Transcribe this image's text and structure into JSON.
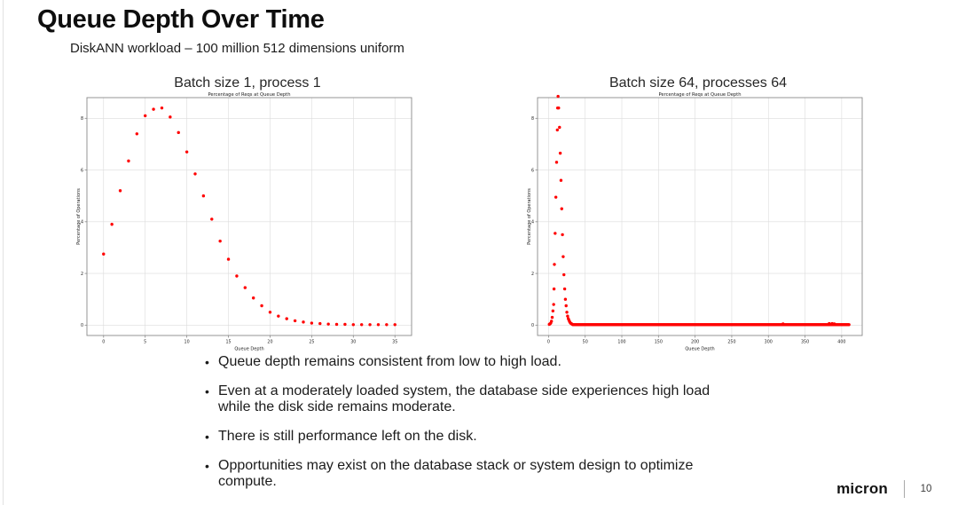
{
  "slide": {
    "title": "Queue Depth Over Time",
    "subtitle": "DiskANN workload – 100 million 512 dimensions uniform",
    "bullets": [
      "Queue depth remains consistent from low to high load.",
      "Even at a moderately loaded system, the database side experiences high load while the disk side remains moderate.",
      "There is still performance left on the disk.",
      "Opportunities may exist on the database stack or system design to optimize compute."
    ],
    "footer": {
      "logo_text": "micron",
      "page_number": "10"
    }
  },
  "chart_data": [
    {
      "type": "scatter",
      "title": "Batch size 1, process 1",
      "inner_title": "Percentage of Reqs at Queue Depth",
      "xlabel": "Queue Depth",
      "ylabel": "Percentage of Operations",
      "xlim": [
        -2,
        37
      ],
      "ylim": [
        -0.4,
        8.8
      ],
      "xticks": [
        0,
        5,
        10,
        15,
        20,
        25,
        30,
        35
      ],
      "yticks": [
        0,
        2,
        4,
        6,
        8
      ],
      "grid": true,
      "legend": "none",
      "marker_color": "#ff0000",
      "grid_color": "#dcdcdc",
      "spine_color": "#8a8a8a",
      "points": [
        [
          0,
          2.75
        ],
        [
          1,
          3.9
        ],
        [
          2,
          5.2
        ],
        [
          3,
          6.35
        ],
        [
          4,
          7.4
        ],
        [
          5,
          8.1
        ],
        [
          6,
          8.35
        ],
        [
          7,
          8.4
        ],
        [
          8,
          8.05
        ],
        [
          9,
          7.45
        ],
        [
          10,
          6.7
        ],
        [
          11,
          5.85
        ],
        [
          12,
          5.0
        ],
        [
          13,
          4.1
        ],
        [
          14,
          3.25
        ],
        [
          15,
          2.55
        ],
        [
          16,
          1.9
        ],
        [
          17,
          1.45
        ],
        [
          18,
          1.05
        ],
        [
          19,
          0.75
        ],
        [
          20,
          0.5
        ],
        [
          21,
          0.35
        ],
        [
          22,
          0.25
        ],
        [
          23,
          0.17
        ],
        [
          24,
          0.12
        ],
        [
          25,
          0.08
        ],
        [
          26,
          0.06
        ],
        [
          27,
          0.04
        ],
        [
          28,
          0.03
        ],
        [
          29,
          0.03
        ],
        [
          30,
          0.02
        ],
        [
          31,
          0.02
        ],
        [
          32,
          0.02
        ],
        [
          33,
          0.02
        ],
        [
          34,
          0.02
        ],
        [
          35,
          0.02
        ]
      ]
    },
    {
      "type": "scatter",
      "title": "Batch size 64, processes 64",
      "inner_title": "Percentage of Reqs at Queue Depth",
      "xlabel": "Queue Depth",
      "ylabel": "Percentage of Operations",
      "xlim": [
        -15,
        428
      ],
      "ylim": [
        -0.4,
        8.8
      ],
      "xticks": [
        0,
        50,
        100,
        150,
        200,
        250,
        300,
        350,
        400
      ],
      "yticks": [
        0,
        2,
        4,
        6,
        8
      ],
      "grid": true,
      "legend": "none",
      "marker_color": "#ff0000",
      "grid_color": "#dcdcdc",
      "spine_color": "#8a8a8a",
      "points": [
        [
          1,
          0.03
        ],
        [
          2,
          0.05
        ],
        [
          3,
          0.08
        ],
        [
          4,
          0.15
        ],
        [
          5,
          0.3
        ],
        [
          6,
          0.55
        ],
        [
          7,
          0.8
        ],
        [
          7.5,
          1.4
        ],
        [
          8,
          2.35
        ],
        [
          9,
          3.55
        ],
        [
          10,
          4.95
        ],
        [
          11,
          6.3
        ],
        [
          12,
          7.55
        ],
        [
          12.4,
          8.4
        ],
        [
          13,
          8.85
        ],
        [
          13.8,
          8.4
        ],
        [
          15,
          7.65
        ],
        [
          16,
          6.65
        ],
        [
          17,
          5.6
        ],
        [
          18,
          4.5
        ],
        [
          19,
          3.5
        ],
        [
          20,
          2.65
        ],
        [
          21,
          1.95
        ],
        [
          22,
          1.4
        ],
        [
          23,
          1.0
        ],
        [
          24,
          0.75
        ],
        [
          25,
          0.5
        ],
        [
          26,
          0.35
        ],
        [
          27,
          0.25
        ],
        [
          28,
          0.18
        ],
        [
          29,
          0.12
        ],
        [
          30,
          0.08
        ],
        [
          31,
          0.06
        ],
        [
          32,
          0.04
        ],
        [
          320,
          0.05
        ],
        [
          383,
          0.06
        ],
        [
          387,
          0.06
        ],
        [
          390,
          0.05
        ]
      ],
      "tail": {
        "from": 33,
        "to": 410,
        "step": 1,
        "y": 0.02
      }
    }
  ]
}
